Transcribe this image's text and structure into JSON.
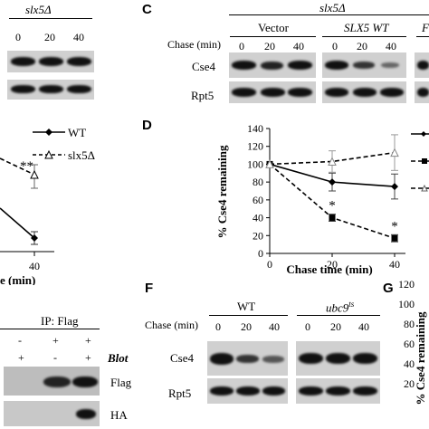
{
  "panel_b": {
    "strain": "slx5Δ",
    "lanes": [
      "0",
      "20",
      "40"
    ],
    "legend": [
      "WT",
      "slx5Δ"
    ],
    "sig": "**",
    "x_tick": "40",
    "x_label_fragment": "e (min)"
  },
  "panel_c": {
    "letter": "C",
    "strain": "slx5Δ",
    "groups": [
      "Vector",
      "SLX5 WT",
      "F"
    ],
    "chase_label": "Chase (min)",
    "lanes": [
      "0",
      "20",
      "40"
    ],
    "rows": [
      "Cse4",
      "Rpt5"
    ]
  },
  "panel_d": {
    "letter": "D",
    "chart_data": {
      "type": "line",
      "x": [
        0,
        20,
        40
      ],
      "xlabel": "Chase time (min)",
      "ylabel": "% Cse4 remaining",
      "xticks": [
        "0",
        "20",
        "40"
      ],
      "yticks": [
        "0",
        "20",
        "40",
        "60",
        "80",
        "100",
        "120",
        "140"
      ],
      "ylim": [
        0,
        140
      ],
      "xlim": [
        0,
        40
      ],
      "series": [
        {
          "values": [
            100,
            80,
            75
          ],
          "errors": [
            0,
            10,
            14
          ],
          "style": "solid",
          "marker": "diamond"
        },
        {
          "values": [
            100,
            40,
            17
          ],
          "errors": [
            0,
            4,
            4
          ],
          "style": "dashed",
          "marker": "square"
        },
        {
          "values": [
            100,
            103,
            113
          ],
          "errors": [
            0,
            12,
            20
          ],
          "style": "dashed",
          "marker": "triangle"
        }
      ],
      "annotations": [
        "*",
        "*"
      ]
    }
  },
  "panel_e": {
    "ip_label": "IP: Flag",
    "rows": [
      [
        "-",
        "+",
        "+"
      ],
      [
        "+",
        "-",
        "+"
      ]
    ],
    "blot_label": "Blot",
    "blots": [
      "Flag",
      "HA"
    ]
  },
  "panel_f": {
    "letter": "F",
    "groups": [
      "WT",
      "ubc9"
    ],
    "ts_superscript": "ts",
    "chase_label": "Chase (min)",
    "lanes": [
      "0",
      "20",
      "40"
    ],
    "rows": [
      "Cse4",
      "Rpt5"
    ]
  },
  "panel_g": {
    "letter": "G",
    "ylabel": "% Cse4 remaining",
    "yticks": [
      "120",
      "100",
      "80",
      "60",
      "40",
      "20"
    ]
  }
}
